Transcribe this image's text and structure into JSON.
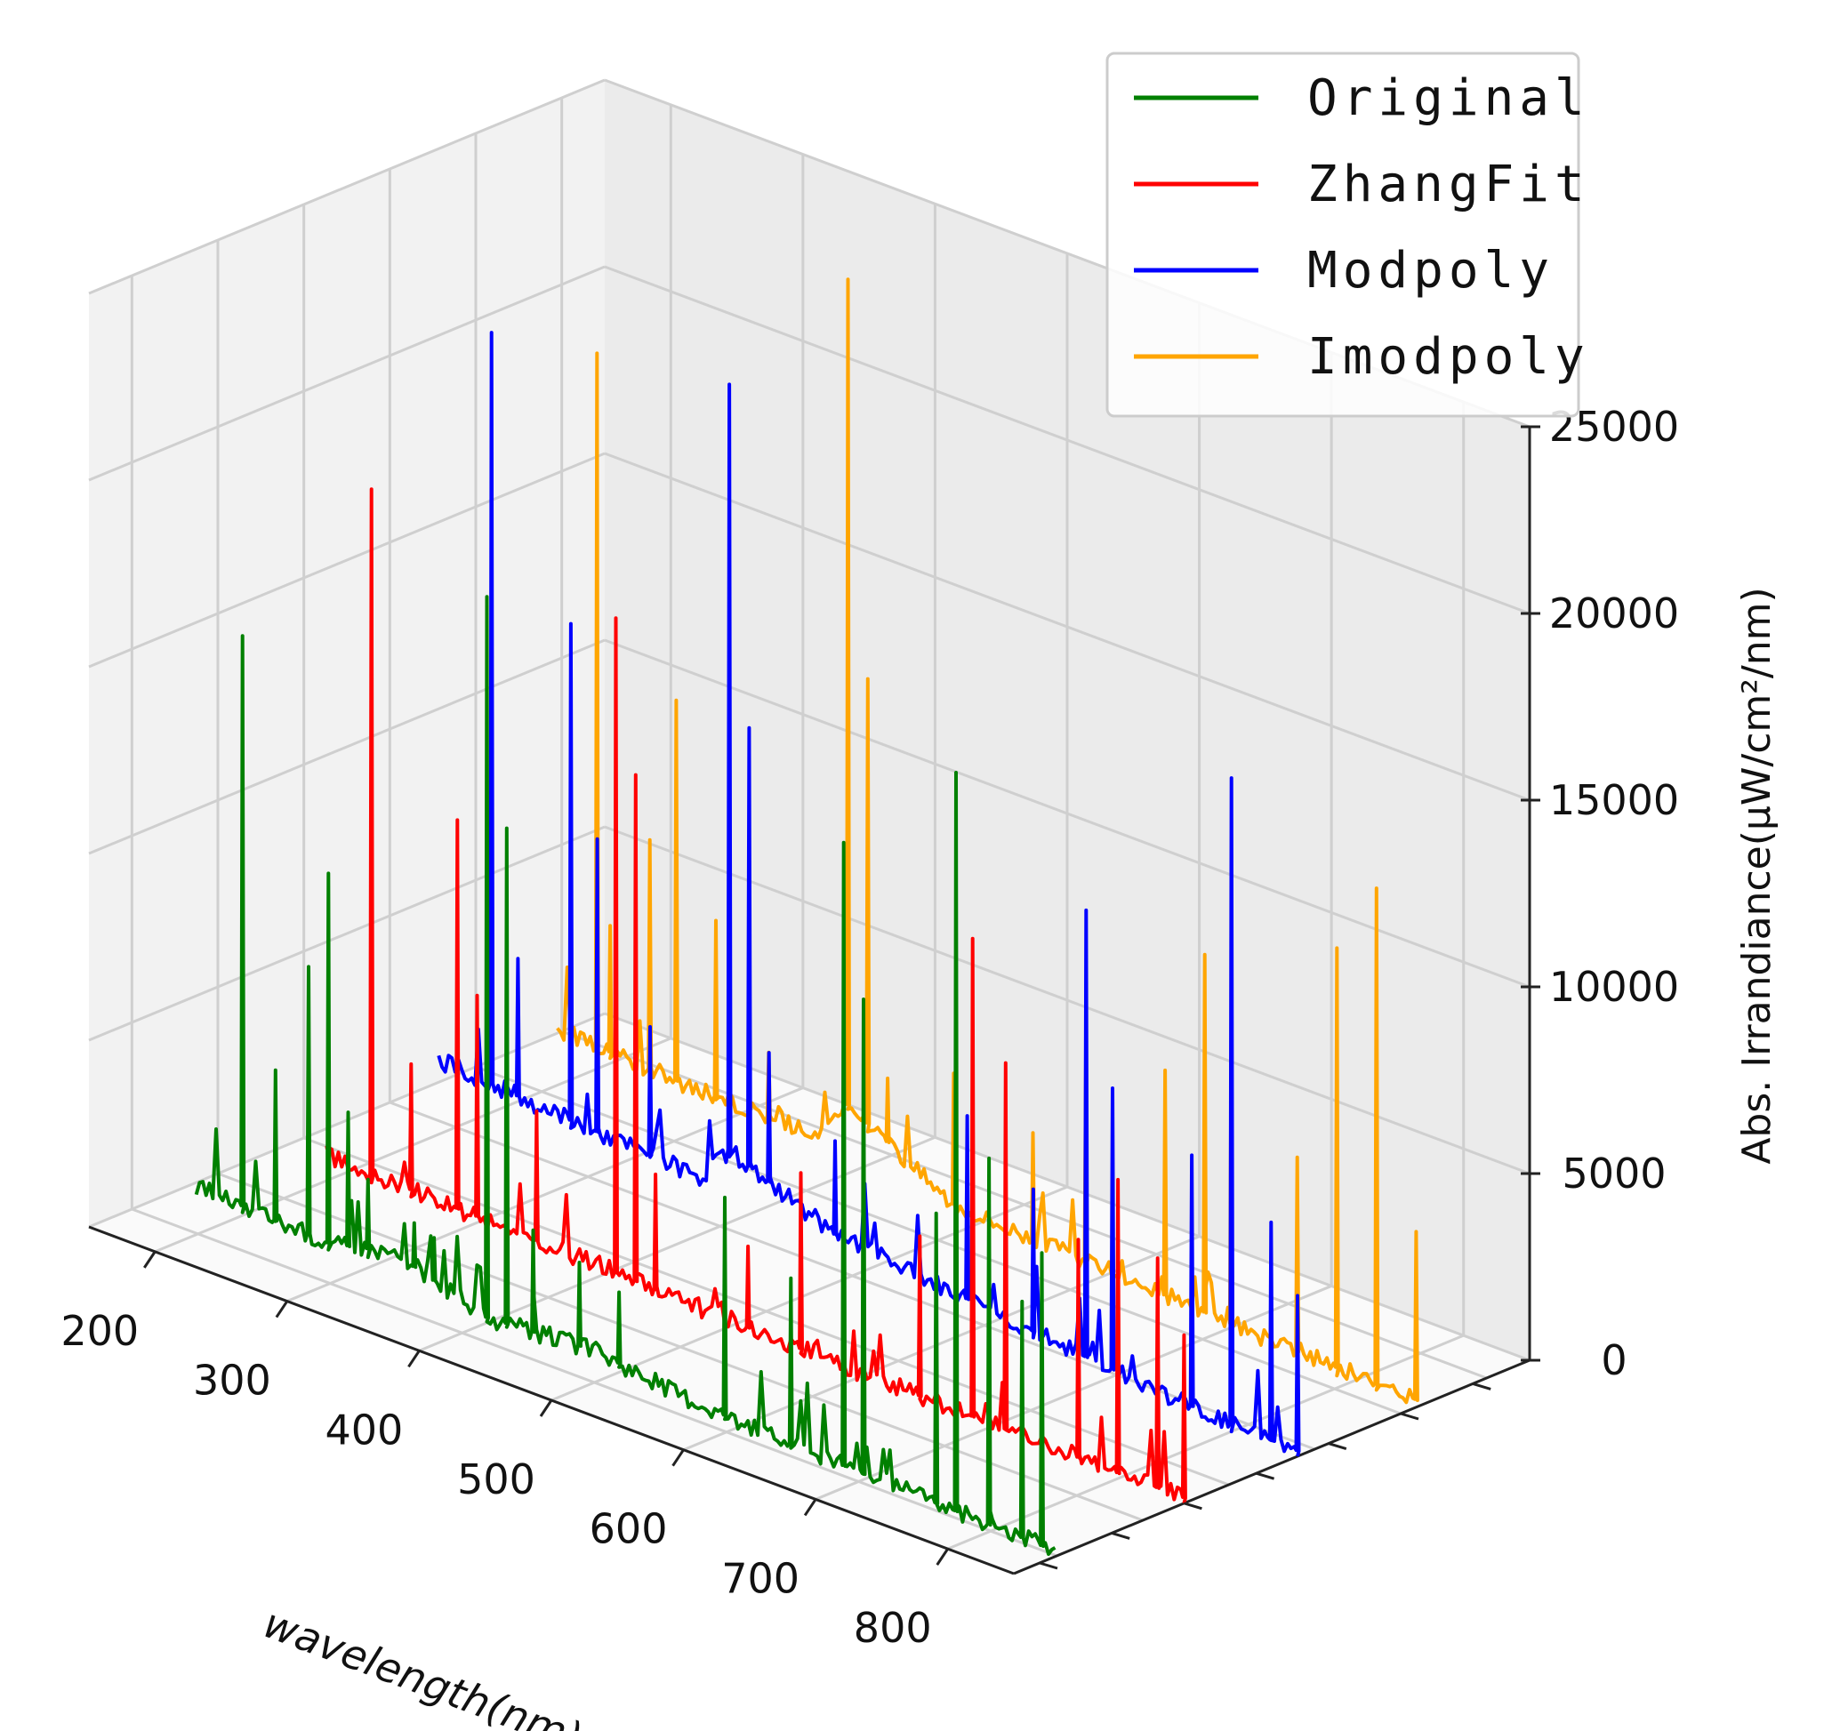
{
  "chart_data": {
    "type": "line",
    "projection": "3d",
    "xlabel": "wavelength(nm)",
    "zlabel": "Abs. Irrandiance(μW/cm²/nm)",
    "xlim": [
      150,
      850
    ],
    "zlim": [
      0,
      25000
    ],
    "x_ticks": [
      "200",
      "300",
      "400",
      "500",
      "600",
      "700",
      "800"
    ],
    "z_ticks": [
      "0",
      "5000",
      "10000",
      "15000",
      "20000",
      "25000"
    ],
    "grid": true,
    "legend_position": "top-right",
    "series": [
      {
        "name": "Original",
        "color": "#008000",
        "baseline": [
          [
            200,
            1300
          ],
          [
            300,
            1100
          ],
          [
            350,
            1500
          ],
          [
            420,
            700
          ],
          [
            500,
            900
          ],
          [
            560,
            600
          ],
          [
            620,
            400
          ],
          [
            700,
            300
          ],
          [
            800,
            200
          ],
          [
            850,
            150
          ]
        ],
        "peaks": [
          [
            235,
            16500
          ],
          [
            260,
            5200
          ],
          [
            285,
            8300
          ],
          [
            300,
            11000
          ],
          [
            315,
            4800
          ],
          [
            330,
            3200
          ],
          [
            365,
            2500
          ],
          [
            380,
            2300
          ],
          [
            420,
            20000
          ],
          [
            435,
            14000
          ],
          [
            455,
            3500
          ],
          [
            490,
            3100
          ],
          [
            520,
            2700
          ],
          [
            600,
            6300
          ],
          [
            650,
            4800
          ],
          [
            690,
            17000
          ],
          [
            705,
            13000
          ],
          [
            760,
            8000
          ],
          [
            775,
            20000
          ],
          [
            800,
            10000
          ],
          [
            825,
            6500
          ],
          [
            840,
            8000
          ]
        ]
      },
      {
        "name": "ZhangFit",
        "color": "#ff0000",
        "baseline": [
          [
            200,
            700
          ],
          [
            300,
            600
          ],
          [
            400,
            500
          ],
          [
            500,
            350
          ],
          [
            600,
            250
          ],
          [
            700,
            200
          ],
          [
            800,
            150
          ],
          [
            850,
            150
          ]
        ],
        "peaks": [
          [
            235,
            19000
          ],
          [
            265,
            4000
          ],
          [
            300,
            11000
          ],
          [
            315,
            6500
          ],
          [
            360,
            4000
          ],
          [
            420,
            18000
          ],
          [
            435,
            14000
          ],
          [
            450,
            3500
          ],
          [
            520,
            2500
          ],
          [
            560,
            5000
          ],
          [
            650,
            4500
          ],
          [
            690,
            13000
          ],
          [
            715,
            10000
          ],
          [
            770,
            6000
          ],
          [
            800,
            8000
          ],
          [
            830,
            6300
          ],
          [
            850,
            4500
          ]
        ]
      },
      {
        "name": "Modpoly",
        "color": "#0000ff",
        "baseline": [
          [
            200,
            2000
          ],
          [
            300,
            1700
          ],
          [
            400,
            1500
          ],
          [
            420,
            2500
          ],
          [
            500,
            1300
          ],
          [
            600,
            900
          ],
          [
            700,
            500
          ],
          [
            800,
            200
          ],
          [
            850,
            150
          ]
        ],
        "peaks": [
          [
            240,
            22000
          ],
          [
            260,
            5500
          ],
          [
            300,
            15000
          ],
          [
            320,
            9500
          ],
          [
            360,
            5000
          ],
          [
            420,
            23000
          ],
          [
            435,
            14000
          ],
          [
            450,
            5500
          ],
          [
            500,
            3800
          ],
          [
            600,
            5800
          ],
          [
            650,
            4500
          ],
          [
            690,
            12500
          ],
          [
            710,
            8000
          ],
          [
            770,
            7000
          ],
          [
            800,
            17500
          ],
          [
            830,
            6000
          ],
          [
            850,
            4300
          ]
        ]
      },
      {
        "name": "Imodpoly",
        "color": "#ffa500",
        "baseline": [
          [
            200,
            1500
          ],
          [
            300,
            1300
          ],
          [
            400,
            1300
          ],
          [
            420,
            2400
          ],
          [
            500,
            800
          ],
          [
            600,
            600
          ],
          [
            700,
            400
          ],
          [
            800,
            250
          ],
          [
            850,
            200
          ]
        ],
        "peaks": [
          [
            230,
            20000
          ],
          [
            240,
            4800
          ],
          [
            270,
            7500
          ],
          [
            290,
            11500
          ],
          [
            320,
            6000
          ],
          [
            360,
            3000
          ],
          [
            420,
            24500
          ],
          [
            435,
            14000
          ],
          [
            450,
            3500
          ],
          [
            500,
            4300
          ],
          [
            560,
            3500
          ],
          [
            600,
            6000
          ],
          [
            660,
            6500
          ],
          [
            690,
            10000
          ],
          [
            710,
            7500
          ],
          [
            760,
            5500
          ],
          [
            790,
            11500
          ],
          [
            820,
            13500
          ],
          [
            850,
            4700
          ]
        ]
      }
    ]
  }
}
